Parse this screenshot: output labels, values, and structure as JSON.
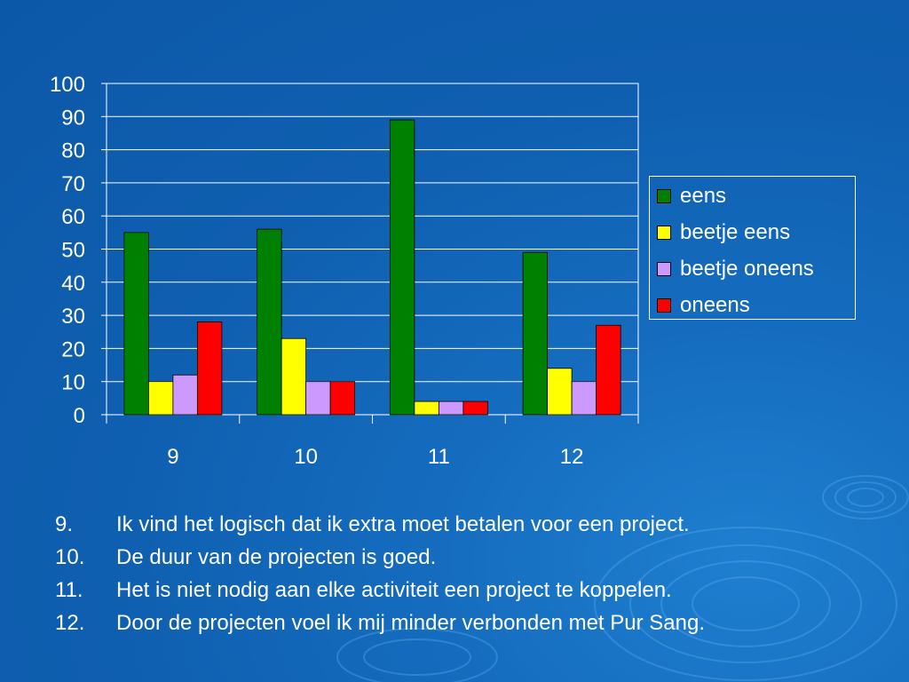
{
  "chart_data": {
    "type": "bar",
    "categories": [
      "9",
      "10",
      "11",
      "12"
    ],
    "series": [
      {
        "name": "eens",
        "values": [
          55,
          56,
          89,
          49
        ],
        "color": "#008000"
      },
      {
        "name": "beetje eens",
        "values": [
          10,
          23,
          4,
          14
        ],
        "color": "#ffff00"
      },
      {
        "name": "beetje oneens",
        "values": [
          12,
          10,
          4,
          10
        ],
        "color": "#cc99ff"
      },
      {
        "name": "oneens",
        "values": [
          28,
          10,
          4,
          27
        ],
        "color": "#ff0000"
      }
    ],
    "yticks": [
      "0",
      "10",
      "20",
      "30",
      "40",
      "50",
      "60",
      "70",
      "80",
      "90",
      "100"
    ],
    "ylim": [
      0,
      100
    ],
    "grid": true,
    "legend_position": "right",
    "title": "",
    "xlabel": "",
    "ylabel": ""
  },
  "statements": [
    {
      "num": "9.",
      "text": "Ik vind het logisch dat ik extra moet betalen voor een project."
    },
    {
      "num": "10.",
      "text": "De duur van de projecten is goed."
    },
    {
      "num": "11.",
      "text": "Het is niet nodig aan elke activiteit een project te koppelen."
    },
    {
      "num": "12.",
      "text": "Door de projecten voel ik mij minder verbonden met Pur Sang."
    }
  ],
  "colors": {
    "background": "#0f5fb0",
    "text": "#ffffff",
    "gridline": "#ffffff"
  }
}
